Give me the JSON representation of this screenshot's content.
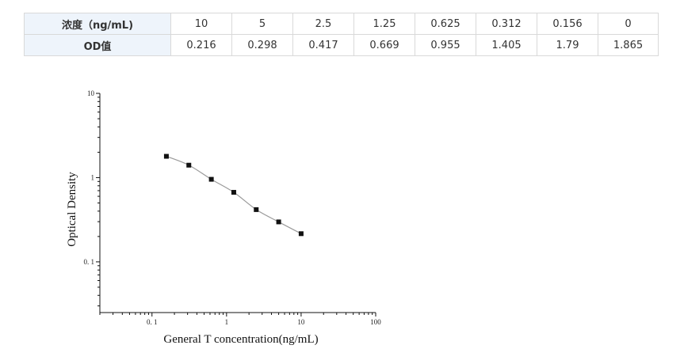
{
  "table": {
    "row_header_conc": "浓度（ng/mL)",
    "row_header_od": "OD值",
    "concentrations": [
      "10",
      "5",
      "2.5",
      "1.25",
      "0.625",
      "0.312",
      "0.156",
      "0"
    ],
    "od_values": [
      "0.216",
      "0.298",
      "0.417",
      "0.669",
      "0.955",
      "1.405",
      "1.79",
      "1.865"
    ]
  },
  "chart_data": {
    "type": "scatter",
    "title": "",
    "xlabel": "General T concentration(ng/mL)",
    "ylabel": "Optical Density",
    "x_scale": "log",
    "y_scale": "log",
    "xlim": [
      0.02,
      100
    ],
    "ylim": [
      0.025,
      10
    ],
    "x_ticks": [
      0.1,
      1,
      10,
      100
    ],
    "x_tick_labels": [
      "0. 1",
      "1",
      "10",
      "100"
    ],
    "y_ticks": [
      0.1,
      1,
      10
    ],
    "y_tick_labels": [
      "0. 1",
      "1",
      "10"
    ],
    "grid": false,
    "series": [
      {
        "x": [
          0.156,
          0.312,
          0.625,
          1.25,
          2.5,
          5,
          10
        ],
        "y": [
          1.79,
          1.405,
          0.955,
          0.669,
          0.417,
          0.298,
          0.216
        ],
        "marker_color": "#111111",
        "curve_color": "#9a9a9a"
      }
    ]
  }
}
